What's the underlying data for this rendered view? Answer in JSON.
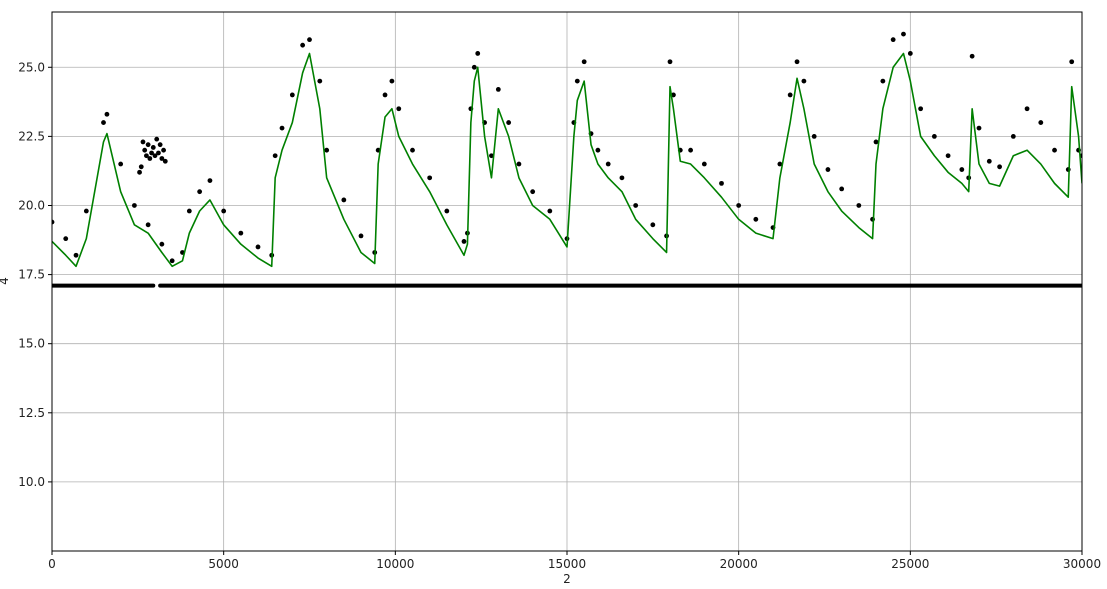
{
  "chart_data": {
    "type": "line",
    "title": "",
    "xlabel": "2",
    "ylabel": "4",
    "xlim": [
      0,
      30000
    ],
    "ylim": [
      7.5,
      27.0
    ],
    "grid": true,
    "x_ticks": [
      0,
      5000,
      10000,
      15000,
      20000,
      25000,
      30000
    ],
    "x_tick_labels": [
      "0",
      "5000",
      "10000",
      "15000",
      "20000",
      "25000",
      "30000"
    ],
    "y_ticks": [
      10.0,
      12.5,
      15.0,
      17.5,
      20.0,
      22.5,
      25.0
    ],
    "y_tick_labels": [
      "10.0",
      "12.5",
      "15.0",
      "17.5",
      "20.0",
      "22.5",
      "25.0"
    ],
    "series": [
      {
        "type": "line",
        "color": "#008000",
        "x": [
          0,
          400,
          700,
          1000,
          1500,
          1600,
          2000,
          2400,
          2800,
          3200,
          3500,
          3800,
          4000,
          4300,
          4600,
          5000,
          5500,
          6000,
          6400,
          6500,
          6700,
          7000,
          7300,
          7500,
          7800,
          8000,
          8500,
          9000,
          9400,
          9500,
          9700,
          9900,
          10100,
          10500,
          11000,
          11500,
          12000,
          12100,
          12200,
          12300,
          12400,
          12600,
          12800,
          13000,
          13300,
          13600,
          14000,
          14500,
          15000,
          15200,
          15300,
          15500,
          15700,
          15900,
          16200,
          16600,
          17000,
          17500,
          17900,
          18000,
          18100,
          18300,
          18600,
          19000,
          19500,
          20000,
          20500,
          21000,
          21200,
          21500,
          21700,
          21900,
          22200,
          22600,
          23000,
          23500,
          23900,
          24000,
          24200,
          24500,
          24800,
          25000,
          25300,
          25700,
          26100,
          26500,
          26700,
          26800,
          27000,
          27300,
          27600,
          28000,
          28400,
          28800,
          29200,
          29600,
          29700,
          29900,
          30000
        ],
        "y": [
          18.7,
          18.2,
          17.8,
          18.8,
          22.3,
          22.6,
          20.5,
          19.3,
          19.0,
          18.3,
          17.8,
          18.0,
          19.0,
          19.8,
          20.2,
          19.3,
          18.6,
          18.1,
          17.8,
          21.0,
          22.0,
          23.0,
          24.8,
          25.5,
          23.5,
          21.0,
          19.5,
          18.3,
          17.9,
          21.5,
          23.2,
          23.5,
          22.5,
          21.5,
          20.5,
          19.3,
          18.2,
          18.6,
          23.0,
          24.5,
          25.0,
          22.5,
          21.0,
          23.5,
          22.5,
          21.0,
          20.0,
          19.5,
          18.5,
          22.5,
          23.8,
          24.5,
          22.2,
          21.5,
          21.0,
          20.5,
          19.5,
          18.8,
          18.3,
          24.3,
          23.5,
          21.6,
          21.5,
          21.0,
          20.3,
          19.5,
          19.0,
          18.8,
          21.0,
          23.0,
          24.6,
          23.5,
          21.5,
          20.5,
          19.8,
          19.2,
          18.8,
          21.5,
          23.5,
          25.0,
          25.5,
          24.5,
          22.5,
          21.8,
          21.2,
          20.8,
          20.5,
          23.5,
          21.5,
          20.8,
          20.7,
          21.8,
          22.0,
          21.5,
          20.8,
          20.3,
          24.3,
          22.5,
          20.8
        ]
      },
      {
        "type": "scatter",
        "color": "#000000",
        "x": [
          0,
          400,
          700,
          1000,
          1500,
          1600,
          2000,
          2400,
          2800,
          3200,
          3500,
          3800,
          4000,
          4300,
          4600,
          5000,
          5500,
          6000,
          6400,
          6500,
          6700,
          7000,
          7300,
          7500,
          7800,
          8000,
          8500,
          9000,
          9400,
          9500,
          9700,
          9900,
          10100,
          10500,
          11000,
          11500,
          12000,
          12100,
          12200,
          12300,
          12400,
          12600,
          12800,
          13000,
          13300,
          13600,
          14000,
          14500,
          15000,
          15200,
          15300,
          15500,
          15700,
          15900,
          16200,
          16600,
          17000,
          17500,
          17900,
          18000,
          18100,
          18300,
          18600,
          19000,
          19500,
          20000,
          20500,
          21000,
          21200,
          21500,
          21700,
          21900,
          22200,
          22600,
          23000,
          23500,
          23900,
          24000,
          24200,
          24500,
          24800,
          25000,
          25300,
          25700,
          26100,
          26500,
          26700,
          26800,
          27000,
          27300,
          27600,
          28000,
          28400,
          28800,
          29200,
          29600,
          29700,
          29900,
          30000
        ],
        "y": [
          19.4,
          18.8,
          18.2,
          19.8,
          23.0,
          23.3,
          21.5,
          20.0,
          19.3,
          18.6,
          18.0,
          18.3,
          19.8,
          20.5,
          20.9,
          19.8,
          19.0,
          18.5,
          18.2,
          21.8,
          22.8,
          24.0,
          25.8,
          26.0,
          24.5,
          22.0,
          20.2,
          18.9,
          18.3,
          22.0,
          24.0,
          24.5,
          23.5,
          22.0,
          21.0,
          19.8,
          18.7,
          19.0,
          23.5,
          25.0,
          25.5,
          23.0,
          21.8,
          24.2,
          23.0,
          21.5,
          20.5,
          19.8,
          18.8,
          23.0,
          24.5,
          25.2,
          22.6,
          22.0,
          21.5,
          21.0,
          20.0,
          19.3,
          18.9,
          25.2,
          24.0,
          22.0,
          22.0,
          21.5,
          20.8,
          20.0,
          19.5,
          19.2,
          21.5,
          24.0,
          25.2,
          24.5,
          22.5,
          21.3,
          20.6,
          20.0,
          19.5,
          22.3,
          24.5,
          26.0,
          26.2,
          25.5,
          23.5,
          22.5,
          21.8,
          21.3,
          21.0,
          25.4,
          22.8,
          21.6,
          21.4,
          22.5,
          23.5,
          23.0,
          22.0,
          21.3,
          25.2,
          22.0,
          21.8
        ]
      },
      {
        "type": "scatter",
        "color": "#000000",
        "x": [
          2550,
          2600,
          2650,
          2700,
          2750,
          2800,
          2850,
          2900,
          2950,
          3000,
          3050,
          3100,
          3150,
          3200,
          3250,
          3300
        ],
        "y": [
          21.2,
          21.4,
          22.3,
          22.0,
          21.8,
          22.2,
          21.7,
          21.9,
          22.1,
          21.8,
          22.4,
          21.9,
          22.2,
          21.7,
          22.0,
          21.6
        ]
      },
      {
        "type": "line",
        "color": "#000000",
        "x": [
          0,
          2950,
          3150,
          30000
        ],
        "y": [
          17.1,
          17.1,
          17.1,
          17.1
        ],
        "gap_after_index": 1
      }
    ]
  }
}
